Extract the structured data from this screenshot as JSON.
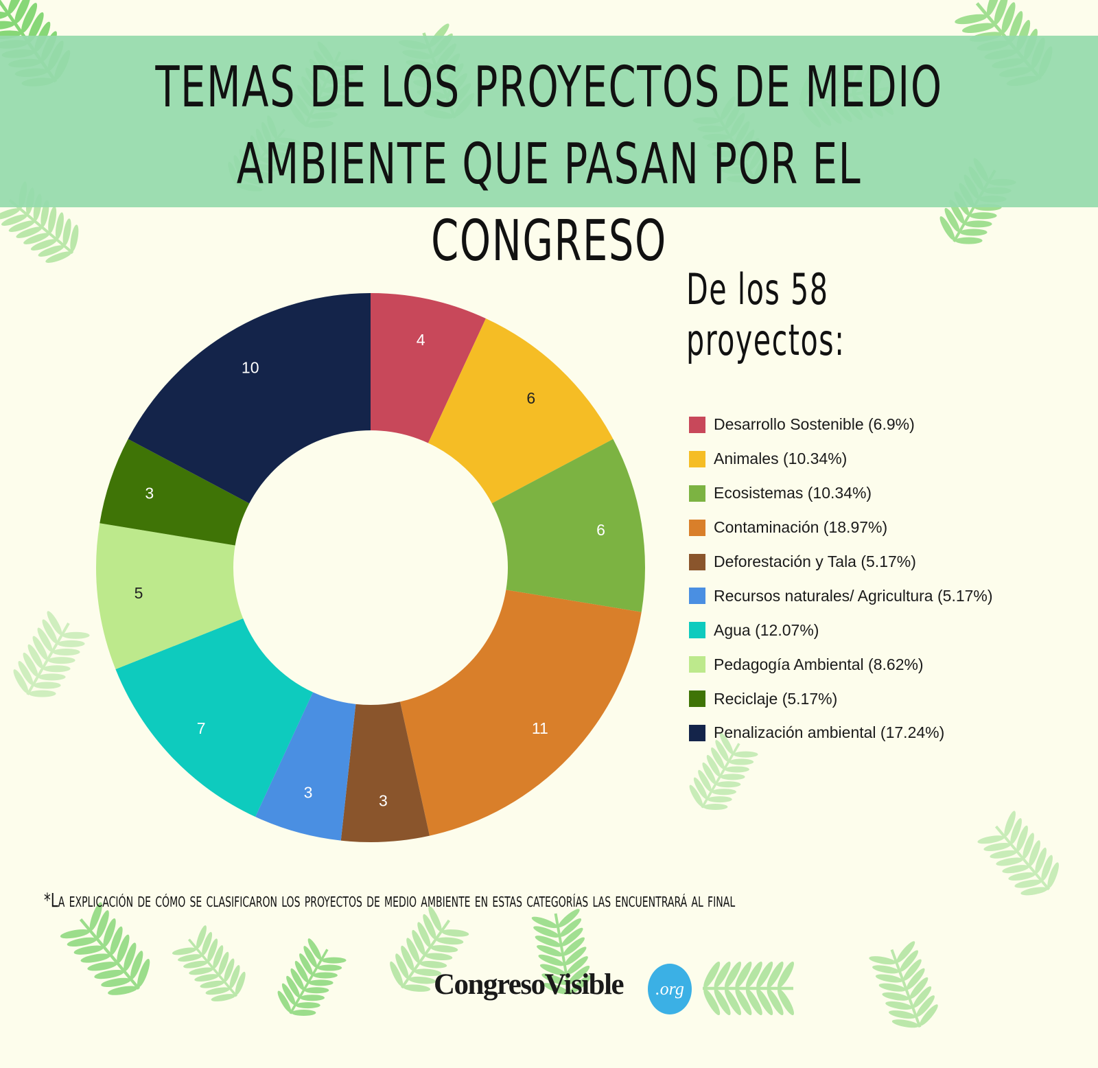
{
  "title": "TEMAS DE LOS PROYECTOS DE MEDIO AMBIENTE QUE PASAN POR EL CONGRESO",
  "subtitle": "De los 58 proyectos:",
  "footnote": "*La explicación de cómo se clasificaron los proyectos de medio ambiente en estas categorías las encuentrará al final",
  "logo": {
    "text": "CongresoVisible",
    "badge": ".org",
    "badge_color": "#3bb0e5"
  },
  "colors": {
    "background": "#fdfdec",
    "banner": "#96daac",
    "leaf": "#7bd36b"
  },
  "chart_data": {
    "type": "pie",
    "variant": "donut",
    "total": 58,
    "start": "top",
    "direction": "clockwise",
    "slices": [
      {
        "label": "Desarrollo Sostenible",
        "value": 4,
        "percent_label": "(6.9%)",
        "color": "#c8485a",
        "label_color": "#ffffff"
      },
      {
        "label": "Animales",
        "value": 6,
        "percent_label": "(10.34%)",
        "color": "#f5bd25",
        "label_color": "#222222"
      },
      {
        "label": "Ecosistemas",
        "value": 6,
        "percent_label": "(10.34%)",
        "color": "#7cb342",
        "label_color": "#ffffff"
      },
      {
        "label": "Contaminación",
        "value": 11,
        "percent_label": "(18.97%)",
        "color": "#d97f2a",
        "label_color": "#ffffff"
      },
      {
        "label": "Deforestación y Tala",
        "value": 3,
        "percent_label": "(5.17%)",
        "color": "#8a552c",
        "label_color": "#ffffff"
      },
      {
        "label": "Recursos naturales/ Agricultura",
        "value": 3,
        "percent_label": "(5.17%)",
        "color": "#4a8fe2",
        "label_color": "#ffffff"
      },
      {
        "label": "Agua",
        "value": 7,
        "percent_label": "(12.07%)",
        "color": "#0ecbbe",
        "label_color": "#ffffff"
      },
      {
        "label": "Pedagogía  Ambiental",
        "value": 5,
        "percent_label": "(8.62%)",
        "color": "#bde98c",
        "label_color": "#222222"
      },
      {
        "label": "Reciclaje",
        "value": 3,
        "percent_label": "(5.17%)",
        "color": "#3f7406",
        "label_color": "#ffffff"
      },
      {
        "label": "Penalización ambiental",
        "value": 10,
        "percent_label": "(17.24%)",
        "color": "#14244a",
        "label_color": "#ffffff"
      }
    ],
    "legend_position": "right"
  }
}
